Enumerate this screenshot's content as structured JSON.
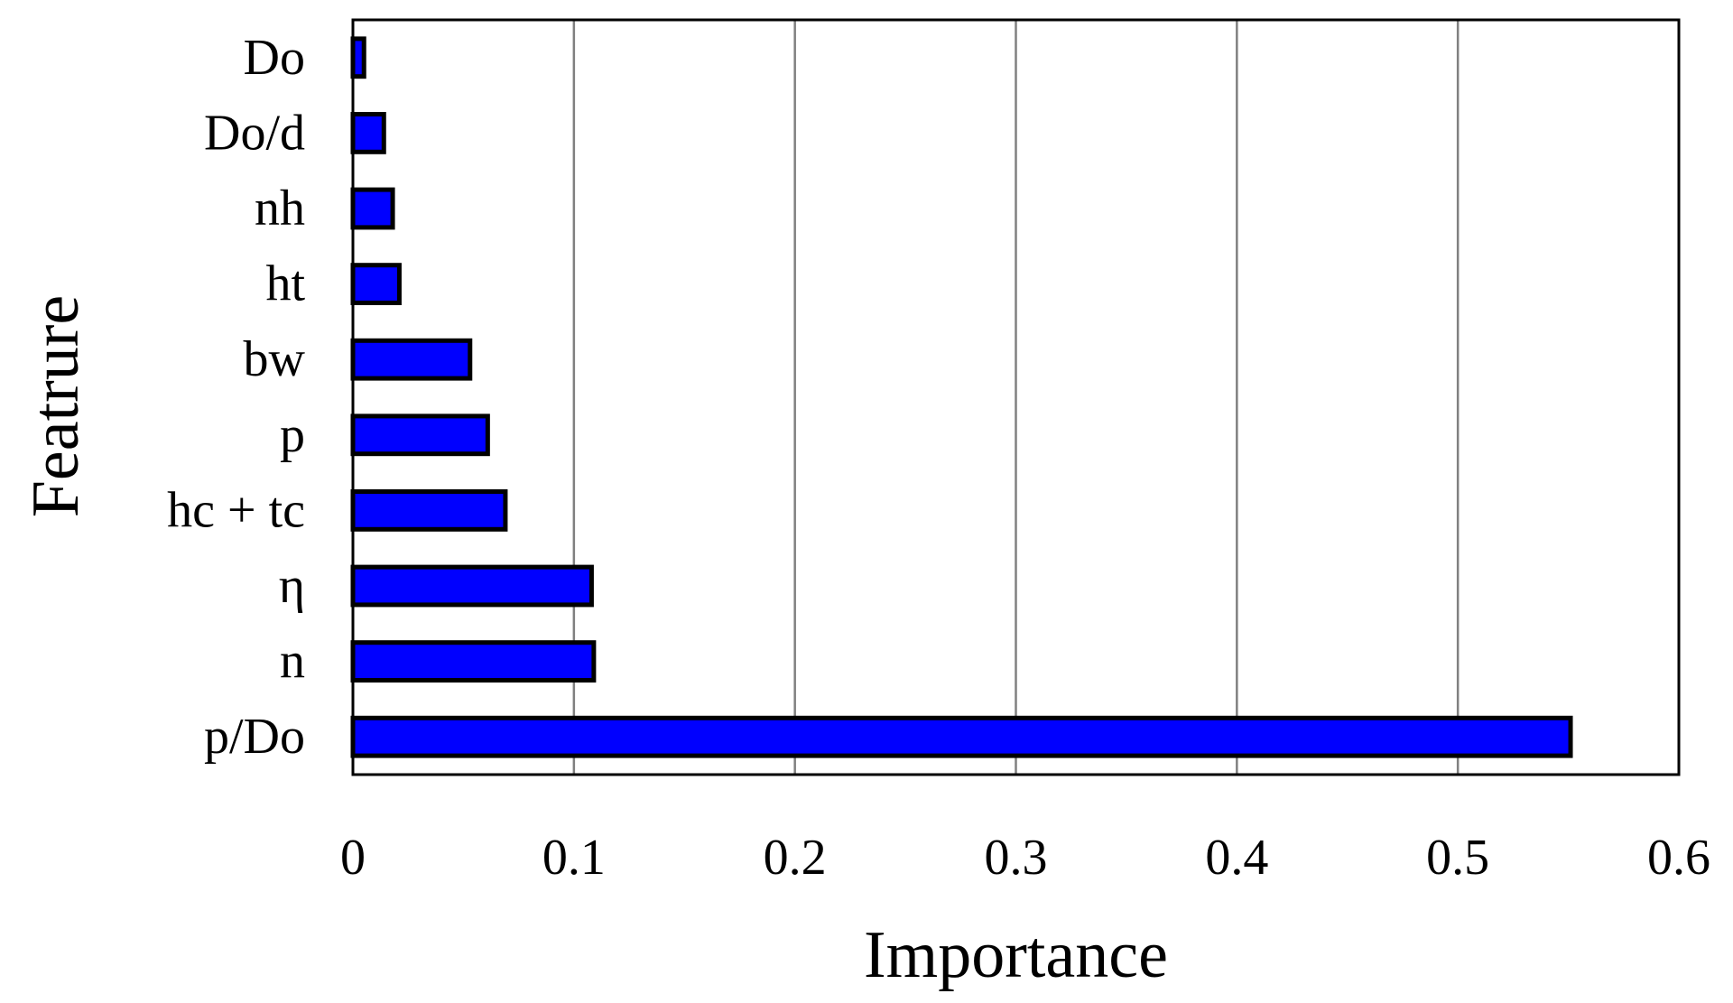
{
  "chart_data": {
    "type": "bar",
    "orientation": "horizontal",
    "categories": [
      "Do",
      "Do/d",
      "nh",
      "ht",
      "bw",
      "p",
      "hc + tc",
      "η",
      "n",
      "p/Do"
    ],
    "values": [
      0.005,
      0.014,
      0.018,
      0.021,
      0.053,
      0.061,
      0.069,
      0.108,
      0.109,
      0.551
    ],
    "xlabel": "Importance",
    "ylabel": "Featrure",
    "xlim": [
      0,
      0.6
    ],
    "xticks": [
      "0",
      "0.1",
      "0.2",
      "0.3",
      "0.4",
      "0.5",
      "0.6"
    ],
    "grid": "vertical",
    "legend": "none",
    "colors": {
      "bar_fill": "#0000ff",
      "bar_stroke": "#000000",
      "grid": "#808080",
      "frame": "#000000"
    }
  }
}
